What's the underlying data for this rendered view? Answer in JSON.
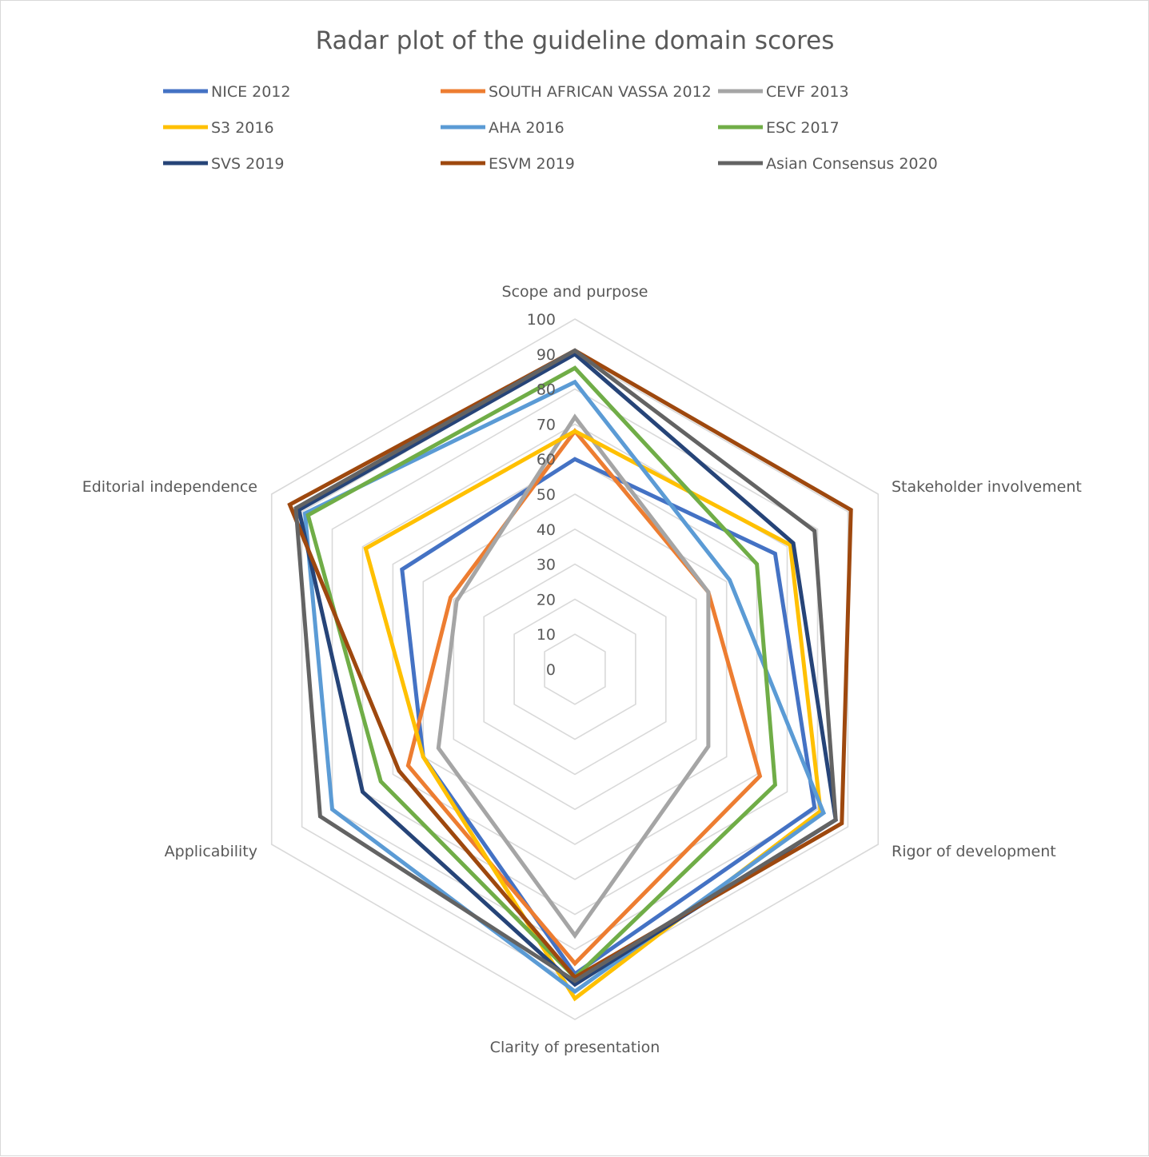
{
  "chart_data": {
    "type": "radar",
    "title": "Radar plot of the guideline domain scores",
    "axes": [
      "Scope and purpose",
      "Stakeholder involvement",
      "Rigor of development",
      "Clarity of presentation",
      "Applicability",
      "Editorial independence"
    ],
    "r_ticks": [
      "0",
      "10",
      "20",
      "30",
      "40",
      "50",
      "60",
      "70",
      "80",
      "90",
      "100"
    ],
    "r_range": [
      0,
      100
    ],
    "grid": true,
    "legend_position": "top",
    "series": [
      {
        "name": "NICE 2012",
        "color": "#4472c4",
        "values": [
          60,
          66,
          79,
          87,
          50,
          57
        ]
      },
      {
        "name": "SOUTH AFRICAN VASSA 2012",
        "color": "#ed7d31",
        "values": [
          68,
          44,
          61,
          84,
          55,
          41
        ]
      },
      {
        "name": "CEVF 2013",
        "color": "#a5a5a5",
        "values": [
          72,
          44,
          44,
          76,
          45,
          39
        ]
      },
      {
        "name": "S3 2016",
        "color": "#ffc000",
        "values": [
          68,
          71,
          81,
          94,
          50,
          69
        ]
      },
      {
        "name": "AHA 2016",
        "color": "#5b9bd5",
        "values": [
          82,
          51,
          82,
          92,
          80,
          89
        ]
      },
      {
        "name": "ESC 2017",
        "color": "#70ad47",
        "values": [
          86,
          60,
          66,
          88,
          64,
          88
        ]
      },
      {
        "name": "SVS 2019",
        "color": "#264478",
        "values": [
          90,
          72,
          86,
          90,
          70,
          91
        ]
      },
      {
        "name": "ESVM 2019",
        "color": "#9e480e",
        "values": [
          91,
          91,
          88,
          88,
          58,
          94
        ]
      },
      {
        "name": "Asian Consensus 2020",
        "color": "#636363",
        "values": [
          91,
          79,
          86,
          89,
          84,
          92
        ]
      }
    ]
  }
}
